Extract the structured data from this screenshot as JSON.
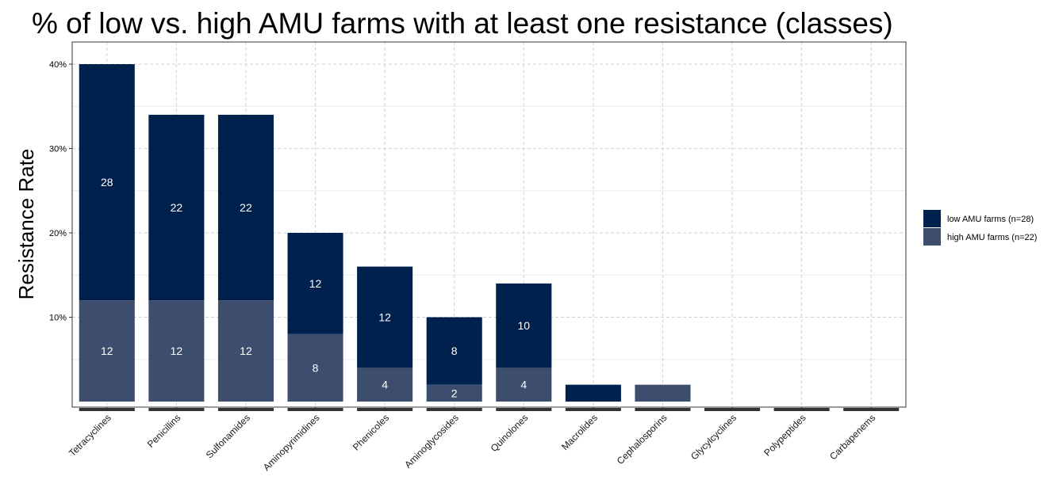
{
  "chart_data": {
    "type": "bar",
    "stacked": true,
    "title": "% of low vs. high AMU farms with at least one resistance (classes)",
    "xlabel": "",
    "ylabel": "Resistance Rate",
    "ylim": [
      0,
      0.41
    ],
    "y_ticks": [
      0.1,
      0.2,
      0.3,
      0.4
    ],
    "y_tick_labels": [
      "10%",
      "20%",
      "30%",
      "40%"
    ],
    "grid": true,
    "legend_position": "right",
    "categories": [
      "Tetracyclines",
      "Penicillins",
      "Sulfonamides",
      "Aminopyrimidines",
      "Phenicoles",
      "Aminoglycosides",
      "Quinolones",
      "Macrolides",
      "Cephalosporins",
      "Glycylcyclines",
      "Polypeptides",
      "Carbapenems"
    ],
    "series": [
      {
        "name": "high AMU farms (n=22)",
        "color": "#3d4d6e",
        "values": [
          0.12,
          0.12,
          0.12,
          0.08,
          0.04,
          0.02,
          0.04,
          0,
          0.02,
          0,
          0,
          0
        ],
        "labels": [
          "12",
          "12",
          "12",
          "8",
          "4",
          "2",
          "4",
          "",
          "",
          "",
          "",
          ""
        ]
      },
      {
        "name": "low AMU farms (n=28)",
        "color": "#00204d",
        "values": [
          0.28,
          0.22,
          0.22,
          0.12,
          0.12,
          0.08,
          0.1,
          0.02,
          0,
          0,
          0,
          0
        ],
        "labels": [
          "28",
          "22",
          "22",
          "12",
          "12",
          "8",
          "10",
          "",
          "",
          "",
          "",
          ""
        ]
      }
    ],
    "legend_order": [
      "low AMU farms (n=28)",
      "high AMU farms (n=22)"
    ]
  }
}
